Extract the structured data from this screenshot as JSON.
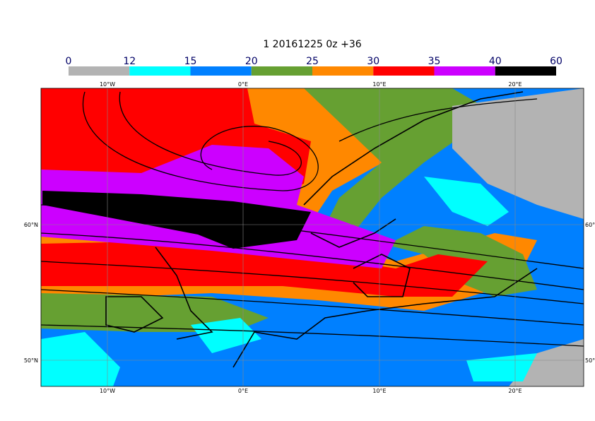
{
  "title": "1 20161225 0z +36",
  "colorbar": {
    "bounds": [
      0,
      12,
      15,
      20,
      25,
      30,
      35,
      40,
      60
    ],
    "colors": [
      "#b3b3b3",
      "#00ffff",
      "#0080ff",
      "#66a032",
      "#ff8800",
      "#ff0000",
      "#cc00ff",
      "#000000"
    ]
  },
  "map": {
    "lon_labels": [
      "10°W",
      "0°E",
      "10°E",
      "20°E"
    ],
    "lat_labels": [
      "60°N",
      "50°N"
    ]
  }
}
